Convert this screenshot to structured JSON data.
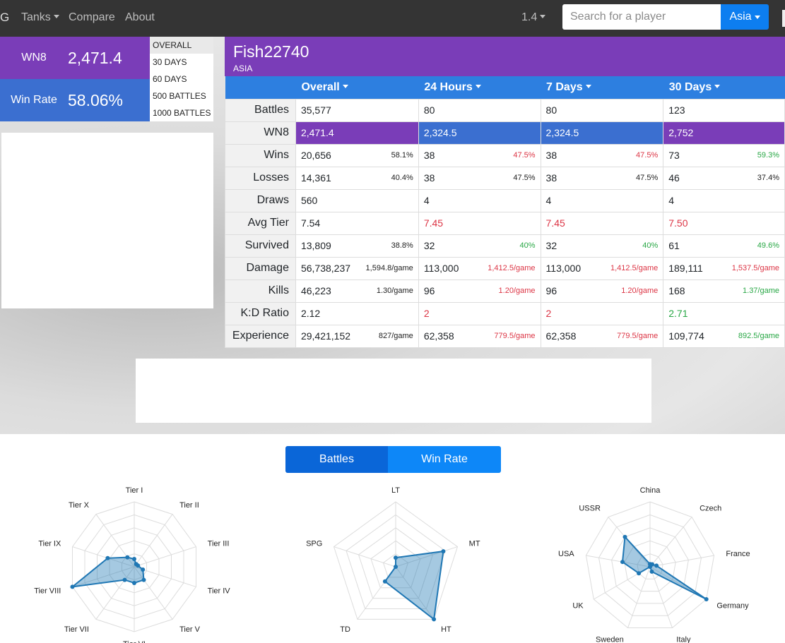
{
  "nav": {
    "brand_edge": "G",
    "tanks_label": "Tanks",
    "compare_label": "Compare",
    "about_label": "About",
    "version_label": "1.4",
    "search_placeholder": "Search for a player",
    "region_label": "Asia"
  },
  "summary": {
    "wn8_label": "WN8",
    "wn8_value": "2,471.4",
    "winrate_label": "Win Rate",
    "winrate_value": "58.06%",
    "wn8_color": "#7a3db8",
    "winrate_color": "#3b6fd0"
  },
  "periods": [
    "OVERALL",
    "30 DAYS",
    "60 DAYS",
    "500 BATTLES",
    "1000 BATTLES"
  ],
  "player": {
    "name": "Fish22740",
    "region": "ASIA"
  },
  "table": {
    "columns": [
      "Overall",
      "24 Hours",
      "7 Days",
      "30 Days"
    ],
    "rows": [
      {
        "label": "Battles",
        "cells": [
          {
            "v": "35,577"
          },
          {
            "v": "80"
          },
          {
            "v": "80"
          },
          {
            "v": "123"
          }
        ]
      },
      {
        "label": "WN8",
        "cells": [
          {
            "v": "2,471.4"
          },
          {
            "v": "2,324.5"
          },
          {
            "v": "2,324.5"
          },
          {
            "v": "2,752"
          }
        ]
      },
      {
        "label": "Wins",
        "cells": [
          {
            "v": "20,656",
            "s": "58.1%"
          },
          {
            "v": "38",
            "s": "47.5%",
            "sc": "red"
          },
          {
            "v": "38",
            "s": "47.5%",
            "sc": "red"
          },
          {
            "v": "73",
            "s": "59.3%",
            "sc": "green"
          }
        ]
      },
      {
        "label": "Losses",
        "cells": [
          {
            "v": "14,361",
            "s": "40.4%"
          },
          {
            "v": "38",
            "s": "47.5%"
          },
          {
            "v": "38",
            "s": "47.5%"
          },
          {
            "v": "46",
            "s": "37.4%"
          }
        ]
      },
      {
        "label": "Draws",
        "cells": [
          {
            "v": "560"
          },
          {
            "v": "4"
          },
          {
            "v": "4"
          },
          {
            "v": "4"
          }
        ]
      },
      {
        "label": "Avg Tier",
        "cells": [
          {
            "v": "7.54"
          },
          {
            "v": "7.45",
            "vc": "red"
          },
          {
            "v": "7.45",
            "vc": "red"
          },
          {
            "v": "7.50",
            "vc": "red"
          }
        ]
      },
      {
        "label": "Survived",
        "cells": [
          {
            "v": "13,809",
            "s": "38.8%"
          },
          {
            "v": "32",
            "s": "40%",
            "sc": "green"
          },
          {
            "v": "32",
            "s": "40%",
            "sc": "green"
          },
          {
            "v": "61",
            "s": "49.6%",
            "sc": "green"
          }
        ]
      },
      {
        "label": "Damage",
        "cells": [
          {
            "v": "56,738,237",
            "s": "1,594.8/game"
          },
          {
            "v": "113,000",
            "s": "1,412.5/game",
            "sc": "red"
          },
          {
            "v": "113,000",
            "s": "1,412.5/game",
            "sc": "red"
          },
          {
            "v": "189,111",
            "s": "1,537.5/game",
            "sc": "red"
          }
        ]
      },
      {
        "label": "Kills",
        "cells": [
          {
            "v": "46,223",
            "s": "1.30/game"
          },
          {
            "v": "96",
            "s": "1.20/game",
            "sc": "red"
          },
          {
            "v": "96",
            "s": "1.20/game",
            "sc": "red"
          },
          {
            "v": "168",
            "s": "1.37/game",
            "sc": "green"
          }
        ]
      },
      {
        "label": "K:D Ratio",
        "cells": [
          {
            "v": "2.12"
          },
          {
            "v": "2",
            "vc": "red"
          },
          {
            "v": "2",
            "vc": "red"
          },
          {
            "v": "2.71",
            "vc": "green"
          }
        ]
      },
      {
        "label": "Experience",
        "cells": [
          {
            "v": "29,421,152",
            "s": "827/game"
          },
          {
            "v": "62,358",
            "s": "779.5/game",
            "sc": "red"
          },
          {
            "v": "62,358",
            "s": "779.5/game",
            "sc": "red"
          },
          {
            "v": "109,774",
            "s": "892.5/game",
            "sc": "green"
          }
        ]
      }
    ]
  },
  "toggle": {
    "battles_label": "Battles",
    "winrate_label": "Win Rate"
  },
  "chart_data": [
    {
      "type": "radar",
      "axes": [
        "Tier I",
        "Tier II",
        "Tier III",
        "Tier IV",
        "Tier V",
        "Tier VI",
        "Tier VII",
        "Tier VIII",
        "Tier IX",
        "Tier X"
      ],
      "values": [
        0.12,
        0.05,
        0.06,
        0.14,
        0.25,
        0.25,
        0.25,
        1.0,
        0.43,
        0.18
      ],
      "grid_levels": 5,
      "color": "#1f77b4"
    },
    {
      "type": "radar",
      "axes": [
        "LT",
        "MT",
        "HT",
        "TD",
        "SPG"
      ],
      "values": [
        0.14,
        0.77,
        1.0,
        0.28,
        0.0
      ],
      "grid_levels": 5,
      "color": "#1f77b4"
    },
    {
      "type": "radar",
      "axes": [
        "China",
        "Czech",
        "France",
        "Germany",
        "Italy",
        "Sweden",
        "UK",
        "USA",
        "USSR"
      ],
      "values": [
        0.04,
        0.05,
        0.1,
        1.0,
        0.08,
        0.0,
        0.2,
        0.43,
        0.6
      ],
      "grid_levels": 5,
      "color": "#1f77b4"
    }
  ]
}
